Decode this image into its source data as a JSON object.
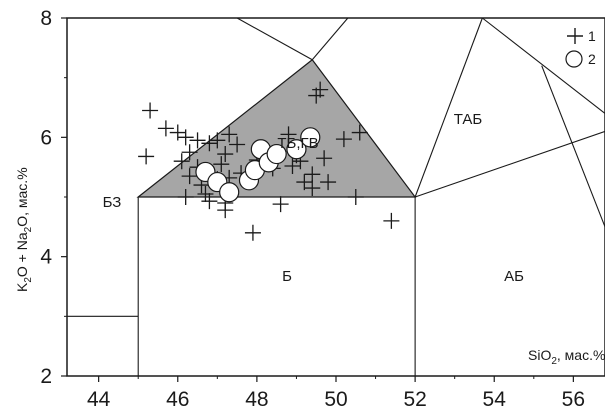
{
  "chart_data": {
    "type": "scatter",
    "xlim": [
      43.2,
      56.8
    ],
    "ylim": [
      2,
      8
    ],
    "x_ticks": [
      "44",
      "46",
      "48",
      "50",
      "52",
      "54",
      "56"
    ],
    "y_ticks": [
      "2",
      "4",
      "6",
      "8"
    ],
    "xlabel": {
      "main": "SiO",
      "sub": "2",
      "suffix": ", мас.%"
    },
    "ylabel": {
      "p1": "K",
      "s1": "2",
      "p2": "O + Na",
      "s2": "2",
      "p3": "O, мас.%"
    },
    "legend": [
      {
        "label": "1",
        "marker": "cross"
      },
      {
        "label": "2",
        "marker": "circle"
      }
    ],
    "region_labels": [
      "ТБ,ГВ",
      "ТАБ",
      "БЗ",
      "Б",
      "АБ"
    ],
    "shaded_color": "#a6a6a6",
    "series": [
      {
        "marker": "cross",
        "points": [
          [
            45.3,
            6.45
          ],
          [
            45.2,
            5.68
          ],
          [
            45.7,
            6.15
          ],
          [
            46.0,
            6.08
          ],
          [
            46.2,
            6.0
          ],
          [
            46.5,
            5.95
          ],
          [
            46.3,
            5.75
          ],
          [
            46.1,
            5.6
          ],
          [
            46.3,
            5.35
          ],
          [
            46.2,
            5.0
          ],
          [
            46.5,
            5.5
          ],
          [
            46.6,
            5.2
          ],
          [
            46.7,
            5.05
          ],
          [
            46.8,
            4.93
          ],
          [
            46.8,
            5.9
          ],
          [
            47.0,
            5.95
          ],
          [
            47.1,
            5.55
          ],
          [
            47.2,
            5.72
          ],
          [
            47.3,
            5.32
          ],
          [
            47.3,
            5.12
          ],
          [
            47.5,
            5.88
          ],
          [
            47.3,
            6.05
          ],
          [
            47.1,
            5.18
          ],
          [
            47.2,
            4.9
          ],
          [
            47.2,
            4.78
          ],
          [
            47.0,
            5.3
          ],
          [
            47.6,
            5.4
          ],
          [
            47.9,
            4.4
          ],
          [
            48.0,
            5.62
          ],
          [
            48.4,
            5.48
          ],
          [
            48.8,
            6.05
          ],
          [
            49.0,
            5.7
          ],
          [
            48.9,
            5.52
          ],
          [
            49.1,
            5.6
          ],
          [
            49.2,
            5.25
          ],
          [
            49.4,
            5.15
          ],
          [
            49.4,
            5.38
          ],
          [
            49.7,
            5.65
          ],
          [
            49.8,
            5.25
          ],
          [
            49.5,
            6.7
          ],
          [
            49.6,
            6.8
          ],
          [
            48.6,
            4.88
          ],
          [
            50.2,
            5.97
          ],
          [
            50.6,
            6.08
          ],
          [
            50.5,
            5.0
          ],
          [
            51.4,
            4.6
          ]
        ]
      },
      {
        "marker": "circle",
        "points": [
          [
            46.7,
            5.42
          ],
          [
            47.0,
            5.25
          ],
          [
            47.3,
            5.08
          ],
          [
            47.8,
            5.28
          ],
          [
            47.95,
            5.45
          ],
          [
            48.1,
            5.8
          ],
          [
            48.3,
            5.58
          ],
          [
            48.5,
            5.72
          ],
          [
            49.0,
            5.8
          ],
          [
            49.35,
            6.0
          ]
        ]
      }
    ]
  }
}
